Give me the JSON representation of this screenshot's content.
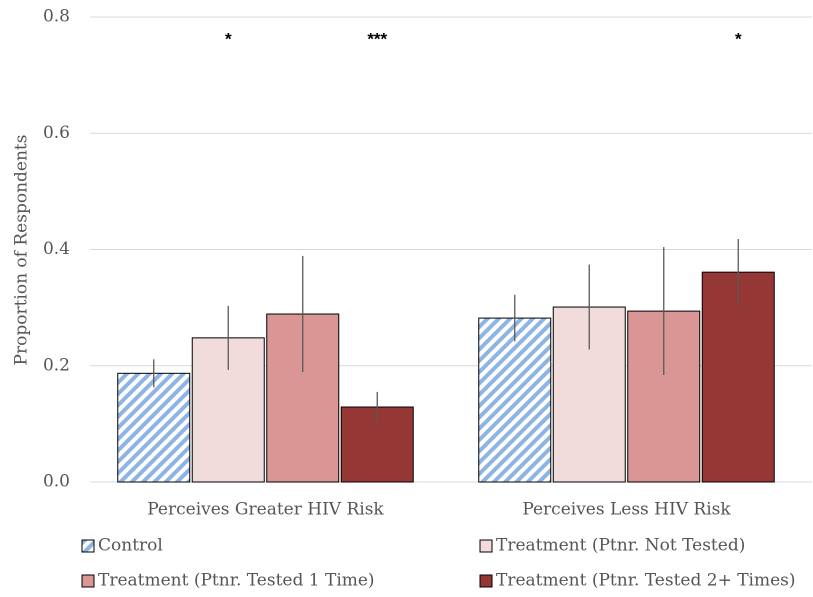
{
  "chart_data": {
    "type": "bar",
    "y_label": "Proportion of Respondents",
    "categories": [
      "Perceives Greater HIV Risk",
      "Perceives Less HIV Risk"
    ],
    "series": [
      {
        "name": "Control",
        "color": "#8eb4e3",
        "pattern": "hatch",
        "values": [
          0.187,
          0.282
        ],
        "errors": [
          0.024,
          0.04
        ],
        "significance": [
          null,
          null
        ]
      },
      {
        "name": "Treatment (Ptnr. Not Tested)",
        "color": "#f2dcdb",
        "values": [
          0.248,
          0.301
        ],
        "errors": [
          0.055,
          0.073
        ],
        "significance": [
          "*",
          null
        ]
      },
      {
        "name": "Treatment (Ptnr. Tested 1 Time)",
        "color": "#d99694",
        "values": [
          0.289,
          0.294
        ],
        "errors": [
          0.1,
          0.11
        ],
        "significance": [
          null,
          null
        ]
      },
      {
        "name": "Treatment (Ptnr. Tested 2+ Times)",
        "color": "#953735",
        "values": [
          0.129,
          0.361
        ],
        "errors": [
          0.026,
          0.057
        ],
        "significance": [
          "***",
          "*"
        ]
      }
    ],
    "ylim": [
      0,
      0.8
    ],
    "yticks": [
      {
        "value": 0,
        "label": "0.0"
      },
      {
        "value": 0.2,
        "label": "0.2"
      },
      {
        "value": 0.4,
        "label": "0.4"
      },
      {
        "value": 0.6,
        "label": "0.6"
      },
      {
        "value": 0.8,
        "label": "0.8"
      }
    ],
    "grid": true
  }
}
